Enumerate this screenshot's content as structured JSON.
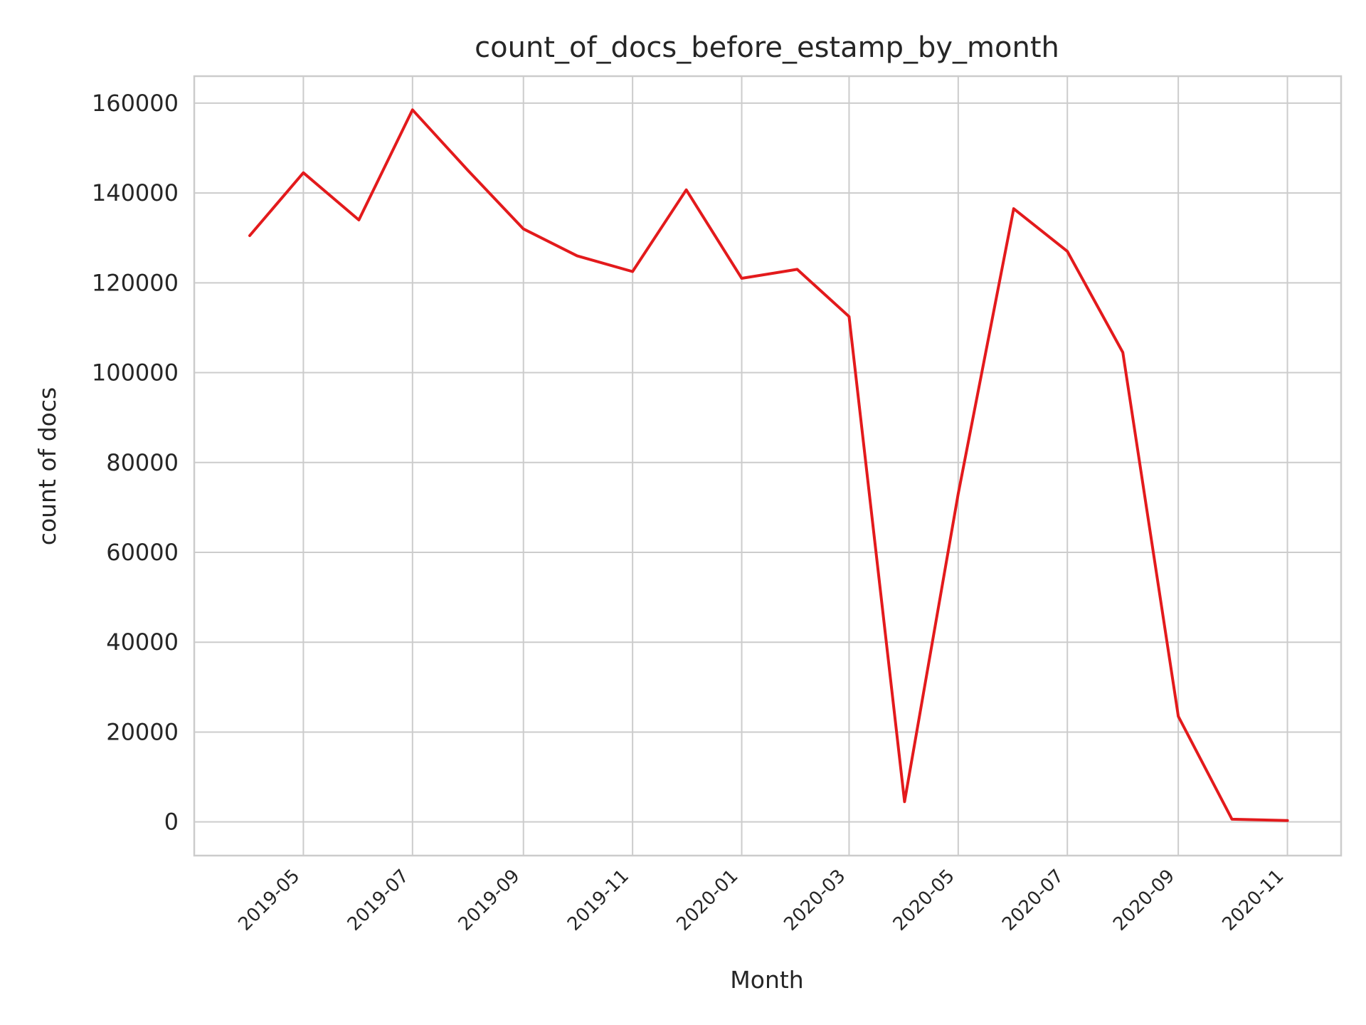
{
  "chart_data": {
    "type": "line",
    "title": "count_of_docs_before_estamp_by_month",
    "xlabel": "Month",
    "ylabel": "count of docs",
    "x": [
      "2019-04",
      "2019-05",
      "2019-06",
      "2019-07",
      "2019-08",
      "2019-09",
      "2019-10",
      "2019-11",
      "2019-12",
      "2020-01",
      "2020-02",
      "2020-03",
      "2020-04",
      "2020-05",
      "2020-06",
      "2020-07",
      "2020-08",
      "2020-09",
      "2020-10",
      "2020-11"
    ],
    "series": [
      {
        "color": "#e31a1c",
        "values": [
          130500,
          144500,
          134000,
          158500,
          145000,
          132000,
          126000,
          122500,
          140700,
          121000,
          123000,
          112500,
          4500,
          73000,
          136500,
          127000,
          104500,
          23500,
          600,
          300
        ]
      }
    ],
    "xticks": [
      "2019-05",
      "2019-07",
      "2019-09",
      "2019-11",
      "2020-01",
      "2020-03",
      "2020-05",
      "2020-07",
      "2020-09",
      "2020-11"
    ],
    "yticks": [
      0,
      20000,
      40000,
      60000,
      80000,
      100000,
      120000,
      140000,
      160000
    ],
    "ylim": [
      -7500,
      166000
    ],
    "xlim": [
      "2019-03-01",
      "2020-12-01"
    ],
    "grid": true,
    "legend": "none"
  }
}
